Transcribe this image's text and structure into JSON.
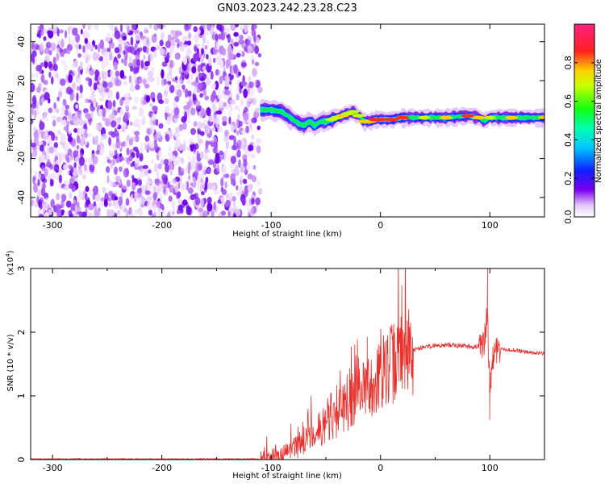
{
  "chart_data": [
    {
      "type": "heatmap",
      "title": "GN03.2023.242.23.28.C23",
      "xlabel": "Height of straight line (km)",
      "ylabel": "Frequency (Hz)",
      "xlim": [
        -320,
        150
      ],
      "ylim": [
        -50,
        49
      ],
      "x_ticks": [
        -300,
        -200,
        -100,
        0,
        100
      ],
      "y_ticks": [
        40,
        20,
        0,
        -20,
        -40
      ],
      "noise_region_x": [
        -320,
        -112
      ],
      "ridge": {
        "x": [
          -110,
          -100,
          -90,
          -80,
          -75,
          -70,
          -65,
          -60,
          -55,
          -50,
          -45,
          -40,
          -35,
          -30,
          -25,
          -20,
          -15,
          -10,
          -5,
          0,
          10,
          20,
          40,
          60,
          80,
          90,
          95,
          100,
          120,
          150
        ],
        "freq": [
          5,
          5,
          4,
          0,
          -2,
          -3,
          -1,
          -3,
          -1,
          -1,
          0,
          1,
          2,
          3,
          4,
          2,
          -1,
          -1,
          0,
          0,
          0,
          1,
          1,
          1,
          2,
          1,
          -1,
          1,
          1,
          1
        ],
        "amplitude": [
          0.35,
          0.55,
          0.45,
          0.55,
          0.6,
          0.5,
          0.5,
          0.55,
          0.6,
          0.65,
          0.7,
          0.75,
          0.8,
          0.75,
          0.7,
          0.75,
          0.8,
          0.85,
          0.9,
          0.95,
          0.95,
          0.9,
          0.75,
          0.85,
          0.9,
          0.8,
          0.6,
          0.75,
          0.85,
          0.8
        ]
      },
      "colorbar": {
        "label": "Normalized spectral amplitude",
        "ticks": [
          "0.0",
          "0.2",
          "0.4",
          "0.6",
          "0.8"
        ],
        "range": [
          0,
          1
        ]
      }
    },
    {
      "type": "line",
      "title": "",
      "xlabel": "Height of straight line (km)",
      "ylabel": "SNR (10 * v/v)",
      "y_scale_note": "(x10",
      "y_scale_exp": "4",
      "y_scale_close": ")",
      "xlim": [
        -320,
        150
      ],
      "ylim": [
        0,
        3
      ],
      "x_ticks": [
        -300,
        -200,
        -100,
        0,
        100
      ],
      "y_ticks": [
        "0",
        "1",
        "2",
        "3"
      ],
      "color": "#e8302c",
      "series": [
        {
          "x": [
            -320,
            -200,
            -110,
            -100,
            -90,
            -80,
            -70,
            -60,
            -50,
            -40,
            -30,
            -20,
            -10,
            0,
            10,
            20,
            30,
            40,
            50,
            60,
            70,
            80,
            90,
            95,
            98,
            100,
            102,
            105,
            110,
            120,
            130,
            140,
            150
          ],
          "y": [
            0.01,
            0.01,
            0.01,
            0.03,
            0.08,
            0.16,
            0.3,
            0.42,
            0.55,
            0.7,
            0.85,
            1.0,
            1.15,
            1.35,
            1.5,
            1.62,
            1.72,
            1.77,
            1.79,
            1.8,
            1.79,
            1.78,
            1.77,
            1.85,
            2.3,
            1.0,
            1.5,
            1.75,
            1.73,
            1.72,
            1.7,
            1.68,
            1.66
          ],
          "spikes": [
            {
              "x": -12,
              "y": 1.93
            },
            {
              "x": -20,
              "y": 1.6
            },
            {
              "x": -45,
              "y": 1.05
            },
            {
              "x": 98,
              "y": 3.0
            },
            {
              "x": 100,
              "y": 0.62
            }
          ]
        }
      ]
    }
  ]
}
